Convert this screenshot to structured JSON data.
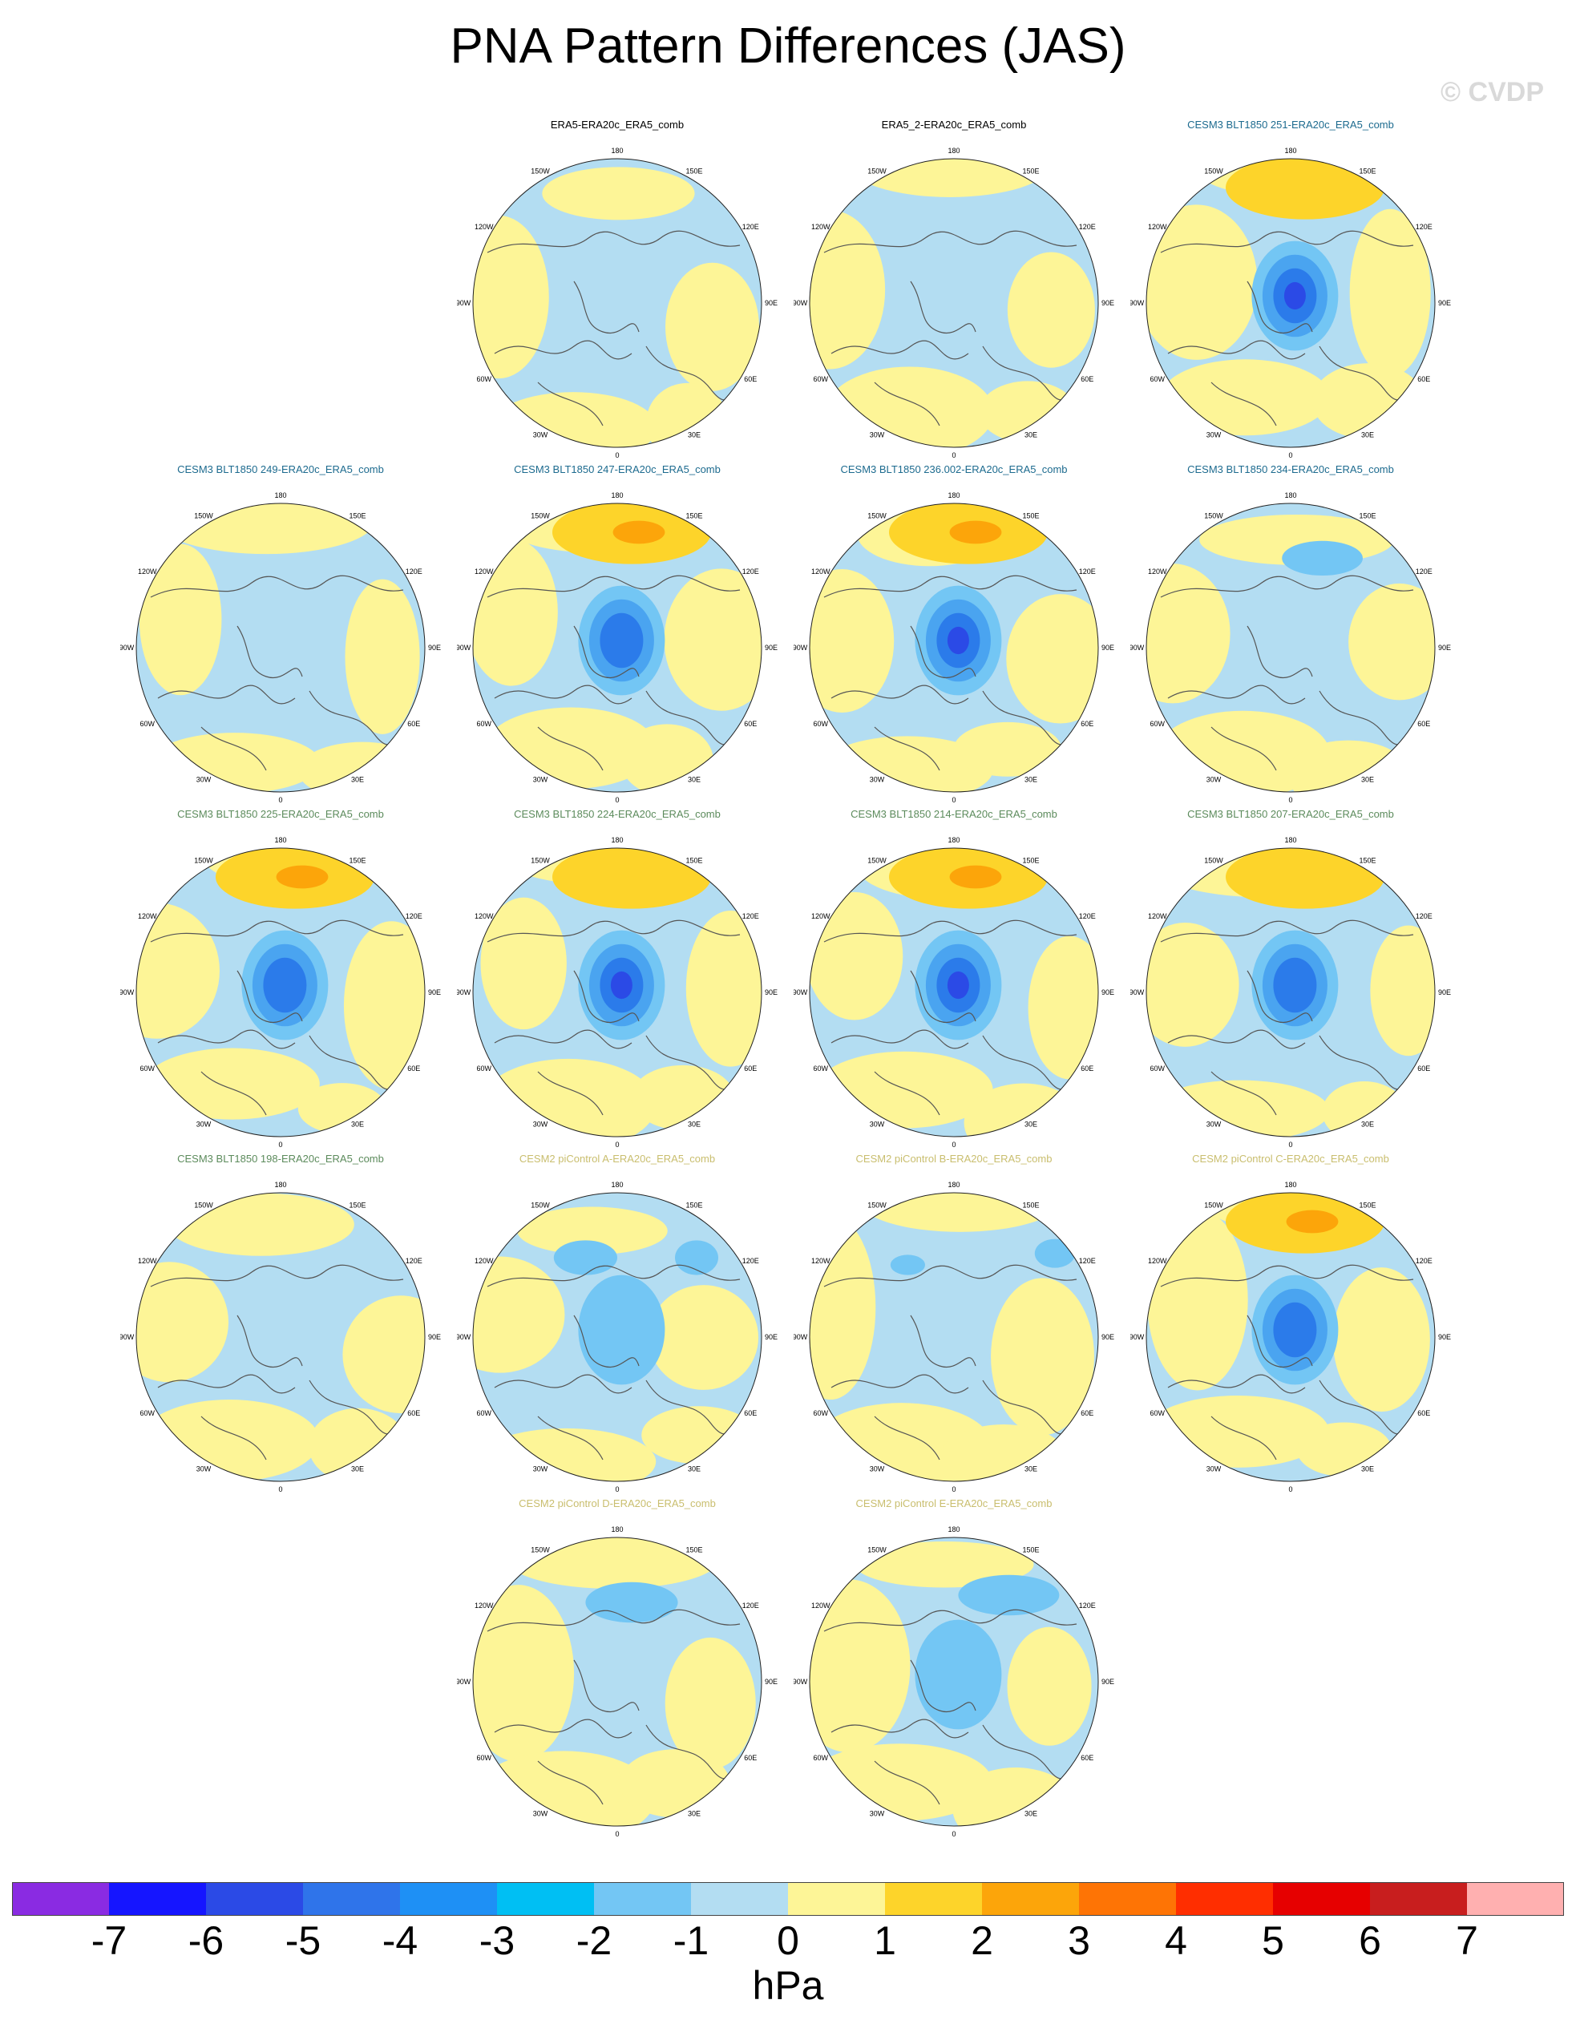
{
  "title": "PNA Pattern Differences (JAS)",
  "watermark": "© CVDP",
  "colors": {
    "yellow": "#fdf597",
    "light_blue": "#b3ddf2",
    "mid_blue": "#73c6f4",
    "blue3": "#4aa4f0",
    "blue4": "#2b7bea",
    "blue5": "#2b4ae6",
    "orange1": "#fdd42a",
    "orange2": "#fca50a",
    "title_black": "#000000",
    "title_teal": "#1d6b8f",
    "title_green": "#5c8b5c",
    "title_khaki": "#c9be6e"
  },
  "lon_labels": [
    "180",
    "150E",
    "120E",
    "90E",
    "60E",
    "30E",
    "0",
    "30W",
    "60W",
    "90W",
    "120W",
    "150W"
  ],
  "panels": [
    {
      "title": "ERA5-ERA20c_ERA5_comb",
      "title_color": "title_black",
      "amp": 0,
      "mid": [],
      "hi": 0
    },
    {
      "title": "ERA5_2-ERA20c_ERA5_comb",
      "title_color": "title_black",
      "amp": 0,
      "mid": [],
      "hi": 0
    },
    {
      "title": "CESM3 BLT1850 251-ERA20c_ERA5_comb",
      "title_color": "title_teal",
      "amp": 5,
      "mid": [],
      "hi": 1
    },
    {
      "title": "CESM3 BLT1850 249-ERA20c_ERA5_comb",
      "title_color": "title_teal",
      "amp": 0,
      "mid": [],
      "hi": 0
    },
    {
      "title": "CESM3 BLT1850 247-ERA20c_ERA5_comb",
      "title_color": "title_teal",
      "amp": 3,
      "mid": [],
      "hi": 2
    },
    {
      "title": "CESM3 BLT1850 236.002-ERA20c_ERA5_comb",
      "title_color": "title_teal",
      "amp": 5,
      "mid": [],
      "hi": 2
    },
    {
      "title": "CESM3 BLT1850 234-ERA20c_ERA5_comb",
      "title_color": "title_teal",
      "amp": 0,
      "mid": [
        [
          0.22,
          -0.62,
          0.28,
          0.12
        ]
      ],
      "hi": 0
    },
    {
      "title": "CESM3 BLT1850 225-ERA20c_ERA5_comb",
      "title_color": "title_green",
      "amp": 3,
      "mid": [],
      "hi": 2
    },
    {
      "title": "CESM3 BLT1850 224-ERA20c_ERA5_comb",
      "title_color": "title_green",
      "amp": 4,
      "mid": [],
      "hi": 1
    },
    {
      "title": "CESM3 BLT1850 214-ERA20c_ERA5_comb",
      "title_color": "title_green",
      "amp": 4,
      "mid": [],
      "hi": 2
    },
    {
      "title": "CESM3 BLT1850 207-ERA20c_ERA5_comb",
      "title_color": "title_green",
      "amp": 3,
      "mid": [],
      "hi": 1
    },
    {
      "title": "CESM3 BLT1850 198-ERA20c_ERA5_comb",
      "title_color": "title_green",
      "amp": 0,
      "mid": [],
      "hi": 0
    },
    {
      "title": "CESM2 piControl A-ERA20c_ERA5_comb",
      "title_color": "title_khaki",
      "amp": 1,
      "mid": [
        [
          -0.22,
          -0.55,
          0.22,
          0.12
        ],
        [
          0.55,
          -0.55,
          0.15,
          0.12
        ]
      ],
      "hi": 0
    },
    {
      "title": "CESM2 piControl B-ERA20c_ERA5_comb",
      "title_color": "title_khaki",
      "amp": 0,
      "mid": [
        [
          -0.32,
          -0.5,
          0.12,
          0.07
        ],
        [
          0.7,
          -0.58,
          0.14,
          0.1
        ]
      ],
      "hi": 0
    },
    {
      "title": "CESM2 piControl C-ERA20c_ERA5_comb",
      "title_color": "title_khaki",
      "amp": 3,
      "mid": [],
      "hi": 2
    },
    {
      "title": "CESM2 piControl D-ERA20c_ERA5_comb",
      "title_color": "title_khaki",
      "amp": 0,
      "mid": [
        [
          0.1,
          -0.55,
          0.32,
          0.14
        ]
      ],
      "hi": 0
    },
    {
      "title": "CESM2 piControl E-ERA20c_ERA5_comb",
      "title_color": "title_khaki",
      "amp": 1,
      "mid": [
        [
          0.38,
          -0.6,
          0.35,
          0.14
        ]
      ],
      "hi": 0
    }
  ],
  "colorbar": {
    "colors": [
      "#8a2be2",
      "#1515ff",
      "#2b4ae6",
      "#2f74ea",
      "#1e90f5",
      "#00bff3",
      "#73c6f4",
      "#b3ddf2",
      "#fdf597",
      "#fdd42a",
      "#fca50a",
      "#fe7405",
      "#ff2e00",
      "#e60000",
      "#c81e1e",
      "#ffb0b0"
    ],
    "labels": [
      "-7",
      "-6",
      "-5",
      "-4",
      "-3",
      "-2",
      "-1",
      "0",
      "1",
      "2",
      "3",
      "4",
      "5",
      "6",
      "7"
    ],
    "unit": "hPa"
  }
}
